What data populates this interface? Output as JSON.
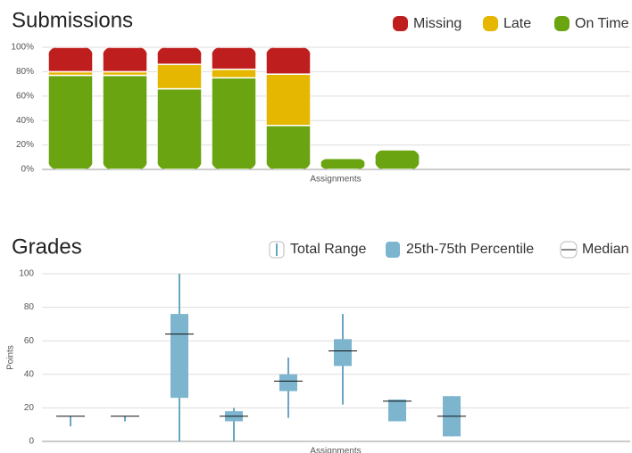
{
  "chart_data": [
    {
      "type": "bar",
      "stacked": true,
      "title": "Submissions",
      "x_label": "Assignments",
      "categories": [
        null,
        null,
        null,
        null,
        null,
        null,
        null
      ],
      "series": [
        {
          "name": "Missing",
          "color": "#bf1e1e",
          "values": [
            20,
            20,
            14,
            18,
            22,
            0,
            0
          ]
        },
        {
          "name": "Late",
          "color": "#e5b700",
          "values": [
            3,
            3,
            20,
            7,
            42,
            0,
            0
          ]
        },
        {
          "name": "On Time",
          "color": "#6aa411",
          "values": [
            77,
            77,
            66,
            75,
            36,
            9,
            16
          ]
        }
      ],
      "ylim": [
        0,
        100
      ],
      "yticks": [
        {
          "value": 0,
          "label": "0%"
        },
        {
          "value": 20,
          "label": "20%"
        },
        {
          "value": 40,
          "label": "40%"
        },
        {
          "value": 60,
          "label": "60%"
        },
        {
          "value": 80,
          "label": "80%"
        },
        {
          "value": 100,
          "label": "100%"
        }
      ],
      "grid": true
    },
    {
      "type": "box",
      "title": "Grades",
      "x_label": "Assignments",
      "y_label": "Points",
      "legend": [
        "Total Range",
        "25th-75th Percentile",
        "Median"
      ],
      "box_color": "#7db5cf",
      "range_color": "#6aa6c3",
      "median_color": "#111111",
      "min": [
        9,
        12,
        0,
        0,
        14,
        22,
        12,
        3
      ],
      "q1": [
        15,
        15,
        26,
        12,
        30,
        45,
        12,
        3
      ],
      "median": [
        15,
        15,
        64,
        15,
        36,
        54,
        24,
        15
      ],
      "q3": [
        15,
        15,
        76,
        18,
        40,
        61,
        25,
        27
      ],
      "max": [
        15,
        15,
        100,
        20,
        50,
        76,
        25,
        27
      ],
      "ylim": [
        0,
        100
      ],
      "yticks": [
        0,
        20,
        40,
        60,
        80,
        100
      ],
      "grid": true
    }
  ]
}
